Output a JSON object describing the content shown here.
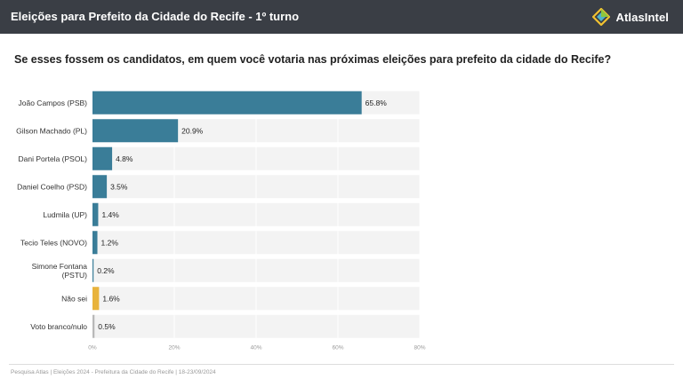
{
  "header": {
    "title": "Eleições para Prefeito da Cidade do Recife - 1º turno",
    "brand": "AtlasIntel",
    "logo_icon": "atlasintel-logo-icon"
  },
  "question": "Se esses fossem os candidatos, em quem você votaria nas próximas eleições para prefeito da cidade do Recife?",
  "footer": "Pesquisa Atlas  |  Eleições 2024 - Prefeitura da Cidade do Recife  |  18-23/09/2024",
  "chart_data": {
    "type": "bar",
    "orientation": "horizontal",
    "title": "",
    "xlabel": "",
    "ylabel": "",
    "xlim": [
      0,
      80
    ],
    "x_ticks": [
      0,
      20,
      40,
      60,
      80
    ],
    "x_tick_labels": [
      "0%",
      "20%",
      "40%",
      "60%",
      "80%"
    ],
    "grid": true,
    "categories": [
      "João Campos (PSB)",
      "Gilson Machado (PL)",
      "Dani Portela (PSOL)",
      "Daniel Coelho (PSD)",
      "Ludmila (UP)",
      "Tecio Teles (NOVO)",
      "Simone Fontana (PSTU)",
      "Não sei",
      "Voto branco/nulo"
    ],
    "category_lines": [
      [
        "João Campos (PSB)"
      ],
      [
        "Gilson Machado (PL)"
      ],
      [
        "Dani Portela (PSOL)"
      ],
      [
        "Daniel Coelho (PSD)"
      ],
      [
        "Ludmila (UP)"
      ],
      [
        "Tecio Teles (NOVO)"
      ],
      [
        "Simone Fontana",
        "(PSTU)"
      ],
      [
        "Não sei"
      ],
      [
        "Voto branco/nulo"
      ]
    ],
    "values": [
      65.8,
      20.9,
      4.8,
      3.5,
      1.4,
      1.2,
      0.2,
      1.6,
      0.5
    ],
    "value_labels": [
      "65.8%",
      "20.9%",
      "4.8%",
      "3.5%",
      "1.4%",
      "1.2%",
      "0.2%",
      "1.6%",
      "0.5%"
    ],
    "colors": [
      "#3a7d98",
      "#3a7d98",
      "#3a7d98",
      "#3a7d98",
      "#3a7d98",
      "#3a7d98",
      "#3a7d98",
      "#e8b33c",
      "#b9b9b9"
    ],
    "track_color": "#f3f3f3"
  }
}
